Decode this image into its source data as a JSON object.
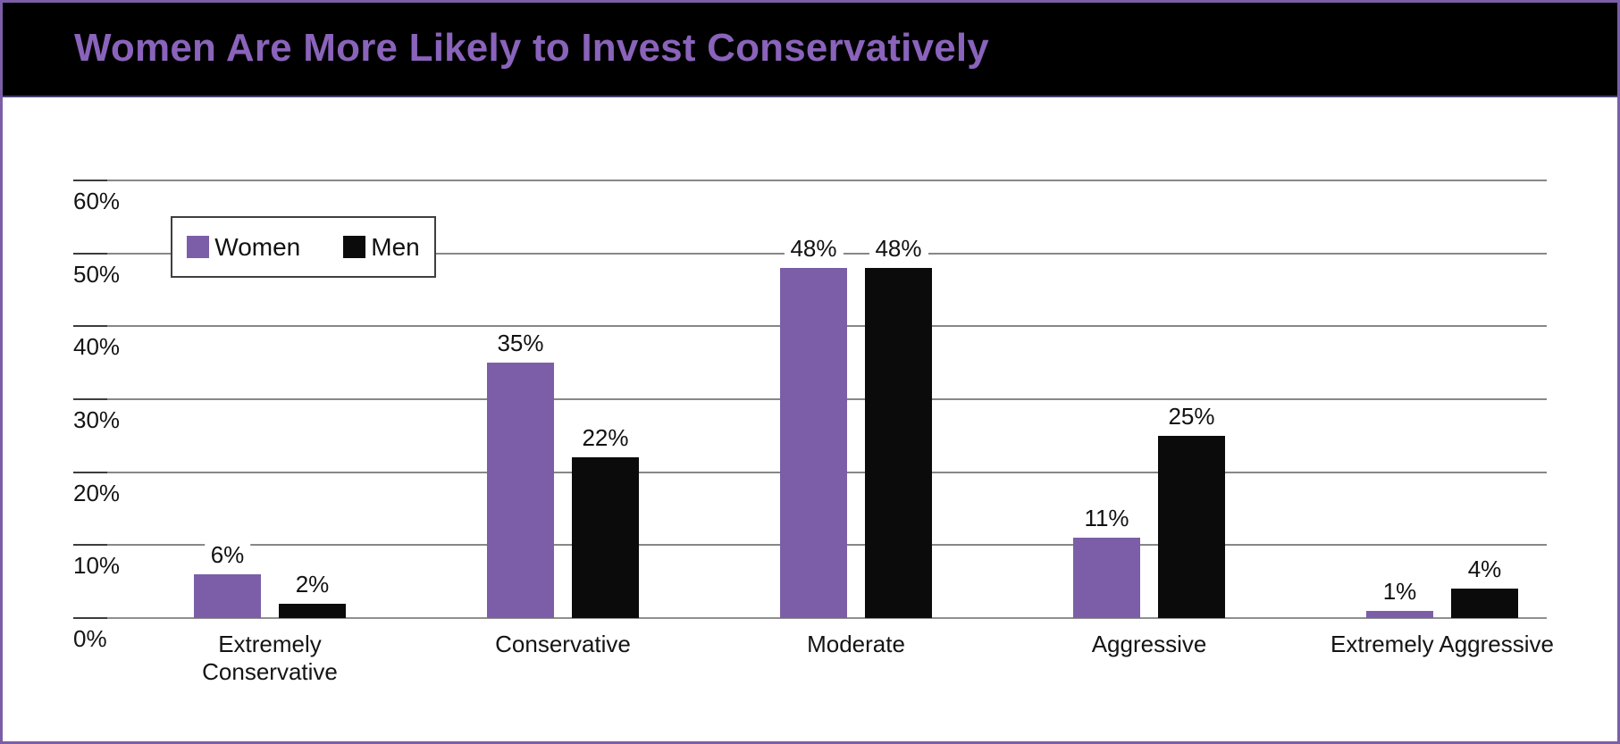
{
  "page": {
    "frame_color": "#7b5ea7",
    "background": "#ffffff"
  },
  "header": {
    "title": "Women Are More Likely to Invest Conservatively",
    "background": "#000000",
    "title_color": "#8a63bb"
  },
  "chart_data": {
    "type": "bar",
    "title": "Women Are More Likely to Invest Conservatively",
    "categories": [
      "Extremely Conservative",
      "Conservative",
      "Moderate",
      "Aggressive",
      "Extremely Aggressive"
    ],
    "series": [
      {
        "name": "Women",
        "color": "#7b5ea7",
        "values": [
          6,
          35,
          48,
          11,
          1
        ],
        "labels": [
          "6%",
          "35%",
          "48%",
          "11%",
          "1%"
        ]
      },
      {
        "name": "Men",
        "color": "#0b0b0b",
        "values": [
          2,
          22,
          48,
          25,
          4
        ],
        "labels": [
          "2%",
          "22%",
          "48%",
          "25%",
          "4%"
        ]
      }
    ],
    "y_axis": {
      "min": 0,
      "max": 60,
      "ticks": [
        60,
        50,
        40,
        30,
        20,
        10,
        0
      ],
      "tick_labels": [
        "60%",
        "50%",
        "40%",
        "30%",
        "20%",
        "10%",
        "0%"
      ]
    },
    "xlabel": "",
    "ylabel": "",
    "grid": true,
    "legend_position": "top-left"
  }
}
